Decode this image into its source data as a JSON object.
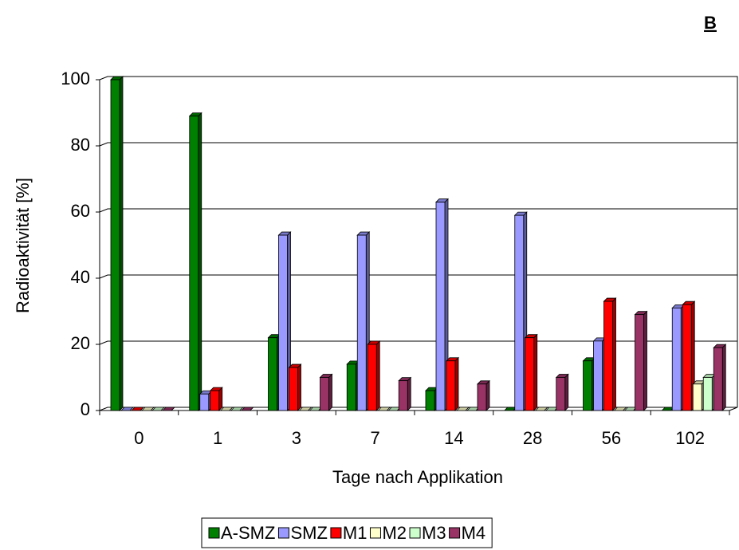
{
  "panel_label": "B",
  "chart_data": {
    "type": "bar3d",
    "y_label": "Radioaktivität [%]",
    "x_label": "Tage nach Applikation",
    "categories": [
      "0",
      "1",
      "3",
      "7",
      "14",
      "28",
      "56",
      "102"
    ],
    "series": [
      {
        "name": "A-SMZ",
        "color": "#008000",
        "values": [
          100,
          89,
          22,
          14,
          6,
          0,
          15,
          0
        ]
      },
      {
        "name": "SMZ",
        "color": "#9999ff",
        "values": [
          0,
          5,
          53,
          53,
          63,
          59,
          21,
          31
        ]
      },
      {
        "name": "M1",
        "color": "#ff0000",
        "values": [
          0,
          6,
          13,
          20,
          15,
          22,
          33,
          32
        ]
      },
      {
        "name": "M2",
        "color": "#ffffcc",
        "values": [
          0,
          0,
          0,
          0,
          0,
          0,
          0,
          8
        ]
      },
      {
        "name": "M3",
        "color": "#ccffcc",
        "values": [
          0,
          0,
          0,
          0,
          0,
          0,
          0,
          10
        ]
      },
      {
        "name": "M4",
        "color": "#993366",
        "values": [
          0,
          0,
          10,
          9,
          8,
          10,
          29,
          19
        ]
      }
    ],
    "ylim": [
      0,
      100
    ],
    "yticks": [
      0,
      20,
      40,
      60,
      80,
      100
    ],
    "grid": true,
    "legend": "bottom"
  }
}
